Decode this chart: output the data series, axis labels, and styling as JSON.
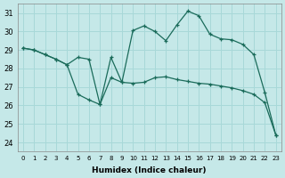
{
  "xlabel": "Humidex (Indice chaleur)",
  "x_ticks": [
    0,
    1,
    2,
    3,
    4,
    5,
    6,
    7,
    8,
    9,
    10,
    11,
    12,
    13,
    14,
    15,
    16,
    17,
    18,
    19,
    20,
    21,
    22,
    23
  ],
  "ylim": [
    23.5,
    31.5
  ],
  "xlim": [
    -0.5,
    23.5
  ],
  "yticks": [
    24,
    25,
    26,
    27,
    28,
    29,
    30,
    31
  ],
  "bg_color": "#c5e8e8",
  "grid_color": "#a8d8d8",
  "line_color": "#1a6b5a",
  "line1_x": [
    0,
    1,
    2,
    3,
    4,
    5,
    6,
    7,
    8,
    9,
    10,
    11,
    12,
    13,
    14,
    15,
    16,
    17,
    18,
    19,
    20,
    21,
    22,
    23
  ],
  "line1_y": [
    29.1,
    29.0,
    28.75,
    28.5,
    28.2,
    26.6,
    26.3,
    26.05,
    27.5,
    27.25,
    27.2,
    27.25,
    27.5,
    27.55,
    27.4,
    27.3,
    27.2,
    27.15,
    27.05,
    26.95,
    26.8,
    26.6,
    26.15,
    24.4
  ],
  "line2_x": [
    0,
    1,
    2,
    3,
    4,
    5,
    6,
    7,
    8,
    9,
    10,
    11,
    12,
    13,
    14,
    15,
    16,
    17,
    18,
    19,
    20,
    21,
    22,
    23
  ],
  "line2_y": [
    29.1,
    29.0,
    28.75,
    28.5,
    28.2,
    28.6,
    28.5,
    26.05,
    28.6,
    27.25,
    30.05,
    30.3,
    30.0,
    29.5,
    30.35,
    31.1,
    30.85,
    29.85,
    29.6,
    29.55,
    29.3,
    28.75,
    26.7,
    24.4
  ]
}
